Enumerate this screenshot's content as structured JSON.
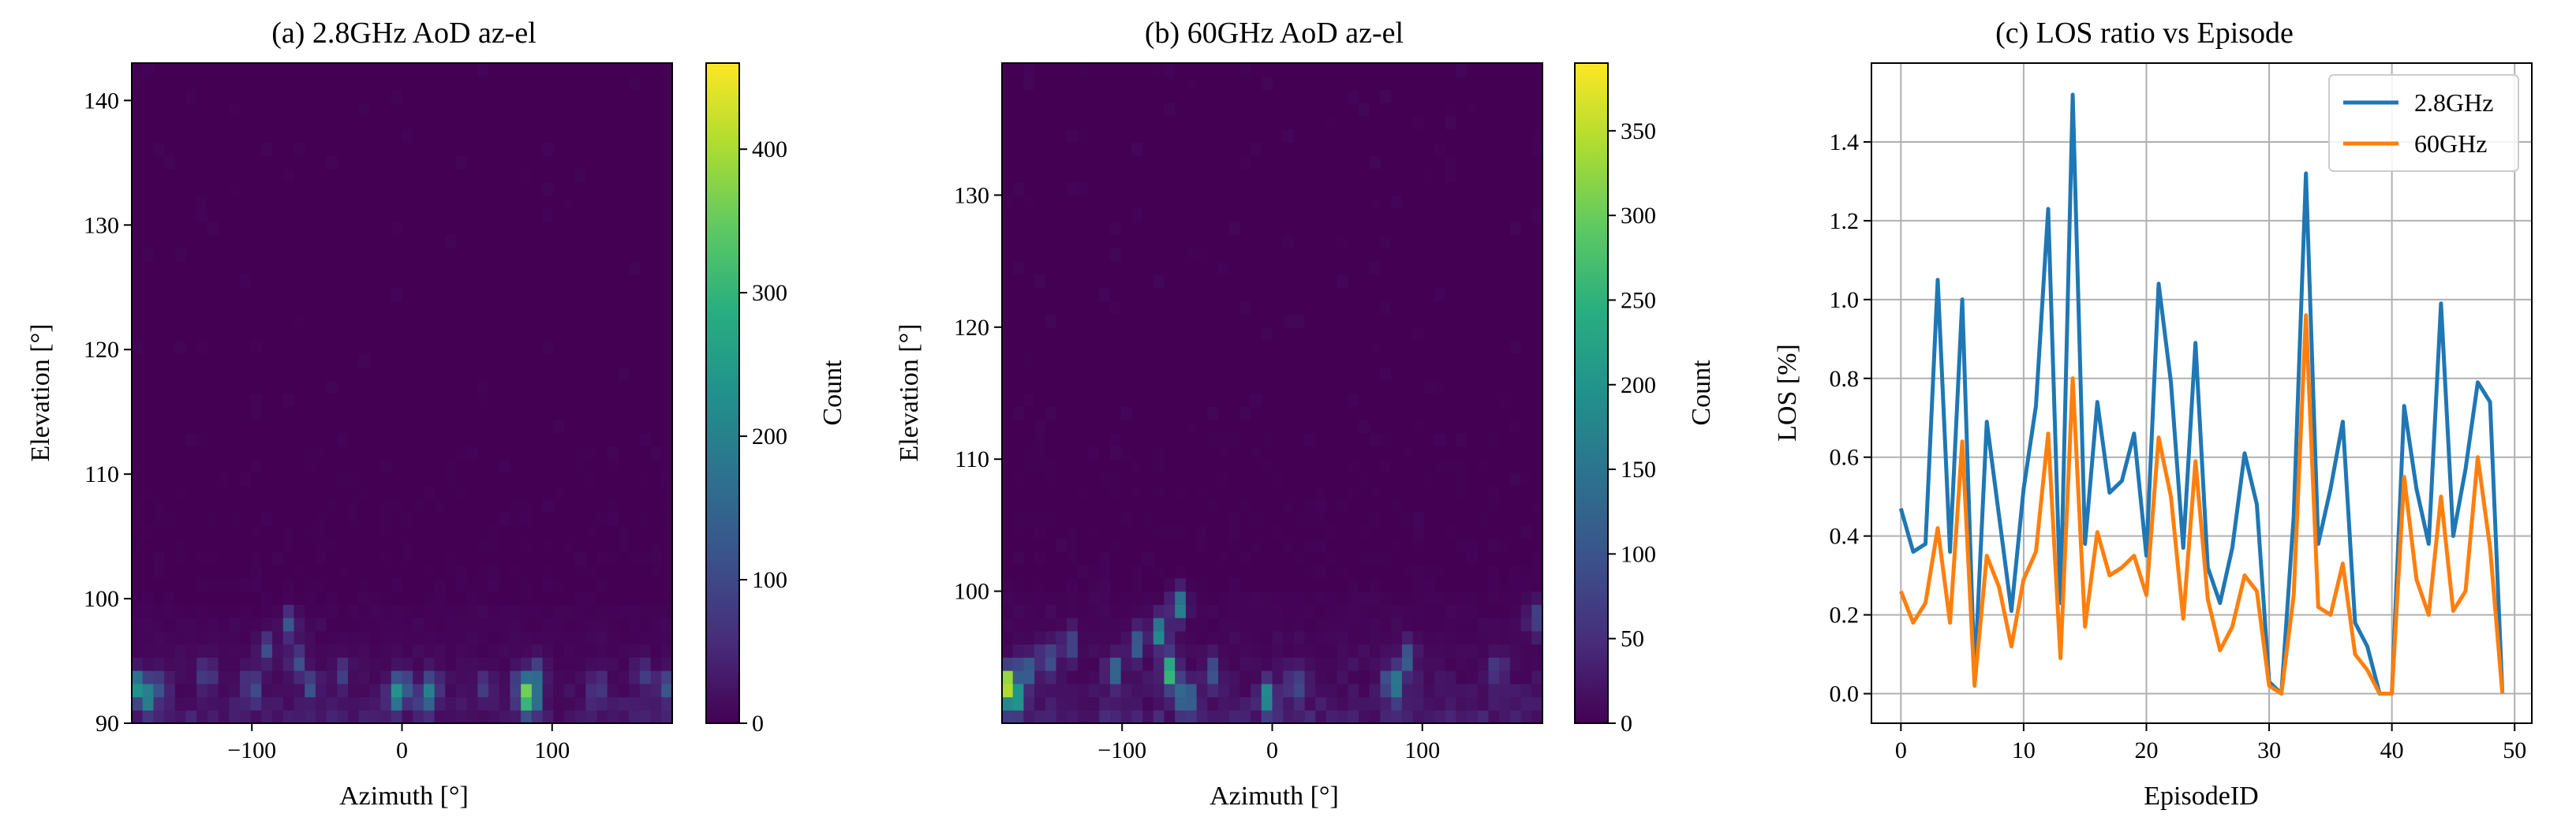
{
  "chart_data": [
    {
      "type": "heatmap",
      "title": "(a) 2.8GHz AoD az-el",
      "xlabel": "Azimuth [°]",
      "ylabel": "Elevation [°]",
      "xlim": [
        -180,
        180
      ],
      "ylim": [
        90,
        143
      ],
      "xticks": [
        -100,
        0,
        100
      ],
      "yticks": [
        90,
        100,
        110,
        120,
        130,
        140
      ],
      "colorbar": {
        "label": "Count",
        "vmin": 0,
        "vmax": 460,
        "ticks": [
          0,
          100,
          200,
          300,
          400
        ]
      },
      "colormap": "viridis",
      "bins": {
        "azimuth_bins": 50,
        "elevation_bins": 50
      },
      "hotspots": [
        {
          "az": -175,
          "el": 93,
          "count": 260
        },
        {
          "az": -170,
          "el": 92,
          "count": 210
        },
        {
          "az": -160,
          "el": 93,
          "count": 130
        },
        {
          "az": -130,
          "el": 94,
          "count": 110
        },
        {
          "az": -100,
          "el": 93,
          "count": 150
        },
        {
          "az": -90,
          "el": 96,
          "count": 110
        },
        {
          "az": -75,
          "el": 98,
          "count": 130
        },
        {
          "az": -70,
          "el": 95,
          "count": 140
        },
        {
          "az": -60,
          "el": 93,
          "count": 120
        },
        {
          "az": -40,
          "el": 94,
          "count": 90
        },
        {
          "az": -5,
          "el": 92,
          "count": 190
        },
        {
          "az": 0,
          "el": 93,
          "count": 230
        },
        {
          "az": 15,
          "el": 92,
          "count": 160
        },
        {
          "az": 20,
          "el": 93,
          "count": 140
        },
        {
          "az": 55,
          "el": 93,
          "count": 80
        },
        {
          "az": 80,
          "el": 93,
          "count": 200
        },
        {
          "az": 85,
          "el": 92,
          "count": 460
        },
        {
          "az": 90,
          "el": 94,
          "count": 150
        },
        {
          "az": 130,
          "el": 93,
          "count": 90
        },
        {
          "az": 160,
          "el": 94,
          "count": 100
        },
        {
          "az": 175,
          "el": 93,
          "count": 140
        }
      ]
    },
    {
      "type": "heatmap",
      "title": "(b) 60GHz AoD az-el",
      "xlabel": "Azimuth [°]",
      "ylabel": "Elevation [°]",
      "xlim": [
        -180,
        180
      ],
      "ylim": [
        90,
        140
      ],
      "xticks": [
        -100,
        0,
        100
      ],
      "yticks": [
        100,
        110,
        120,
        130
      ],
      "colorbar": {
        "label": "Count",
        "vmin": 0,
        "vmax": 390,
        "ticks": [
          0,
          50,
          100,
          150,
          200,
          250,
          300,
          350
        ]
      },
      "colormap": "viridis",
      "bins": {
        "azimuth_bins": 50,
        "elevation_bins": 50
      },
      "hotspots": [
        {
          "az": -178,
          "el": 93,
          "count": 390
        },
        {
          "az": -172,
          "el": 92,
          "count": 300
        },
        {
          "az": -165,
          "el": 94,
          "count": 180
        },
        {
          "az": -150,
          "el": 95,
          "count": 130
        },
        {
          "az": -135,
          "el": 96,
          "count": 120
        },
        {
          "az": -105,
          "el": 94,
          "count": 140
        },
        {
          "az": -90,
          "el": 96,
          "count": 150
        },
        {
          "az": -75,
          "el": 97,
          "count": 220
        },
        {
          "az": -68,
          "el": 94,
          "count": 290
        },
        {
          "az": -62,
          "el": 99,
          "count": 200
        },
        {
          "az": -58,
          "el": 92,
          "count": 220
        },
        {
          "az": -40,
          "el": 94,
          "count": 110
        },
        {
          "az": -3,
          "el": 92,
          "count": 200
        },
        {
          "az": 15,
          "el": 93,
          "count": 130
        },
        {
          "az": 80,
          "el": 93,
          "count": 240
        },
        {
          "az": 90,
          "el": 95,
          "count": 140
        },
        {
          "az": 150,
          "el": 94,
          "count": 90
        },
        {
          "az": 175,
          "el": 98,
          "count": 110
        }
      ]
    },
    {
      "type": "line",
      "title": "(c) LOS ratio vs Episode",
      "xlabel": "EpisodeID",
      "ylabel": "LOS [%]",
      "xlim": [
        -2.4,
        51.4
      ],
      "ylim": [
        -0.075,
        1.6
      ],
      "xticks": [
        0,
        10,
        20,
        30,
        40,
        50
      ],
      "yticks": [
        0.0,
        0.2,
        0.4,
        0.6,
        0.8,
        1.0,
        1.2,
        1.4
      ],
      "grid": true,
      "legend": "top-right",
      "x": [
        0,
        1,
        2,
        3,
        4,
        5,
        6,
        7,
        8,
        9,
        10,
        11,
        12,
        13,
        14,
        15,
        16,
        17,
        18,
        19,
        20,
        21,
        22,
        23,
        24,
        25,
        26,
        27,
        28,
        29,
        30,
        31,
        32,
        33,
        34,
        35,
        36,
        37,
        38,
        39,
        40,
        41,
        42,
        43,
        44,
        45,
        46,
        47,
        48,
        49
      ],
      "series": [
        {
          "name": "2.8GHz",
          "color": "#1f77b4",
          "values": [
            0.47,
            0.36,
            0.38,
            1.05,
            0.36,
            1.0,
            0.04,
            0.69,
            0.45,
            0.21,
            0.52,
            0.73,
            1.23,
            0.23,
            1.52,
            0.38,
            0.74,
            0.51,
            0.54,
            0.66,
            0.35,
            1.04,
            0.79,
            0.37,
            0.89,
            0.32,
            0.23,
            0.37,
            0.61,
            0.48,
            0.03,
            0.0,
            0.45,
            1.32,
            0.38,
            0.52,
            0.69,
            0.18,
            0.12,
            0.0,
            0.0,
            0.73,
            0.52,
            0.38,
            0.99,
            0.4,
            0.57,
            0.79,
            0.74,
            0.0
          ]
        },
        {
          "name": "60GHz",
          "color": "#ff7f0e",
          "values": [
            0.26,
            0.18,
            0.23,
            0.42,
            0.18,
            0.64,
            0.02,
            0.35,
            0.27,
            0.12,
            0.29,
            0.36,
            0.66,
            0.09,
            0.8,
            0.17,
            0.41,
            0.3,
            0.32,
            0.35,
            0.25,
            0.65,
            0.5,
            0.19,
            0.59,
            0.24,
            0.11,
            0.17,
            0.3,
            0.26,
            0.02,
            0.0,
            0.25,
            0.96,
            0.22,
            0.2,
            0.33,
            0.1,
            0.06,
            0.0,
            0.0,
            0.55,
            0.29,
            0.2,
            0.5,
            0.21,
            0.26,
            0.6,
            0.37,
            0.0
          ]
        }
      ]
    }
  ]
}
